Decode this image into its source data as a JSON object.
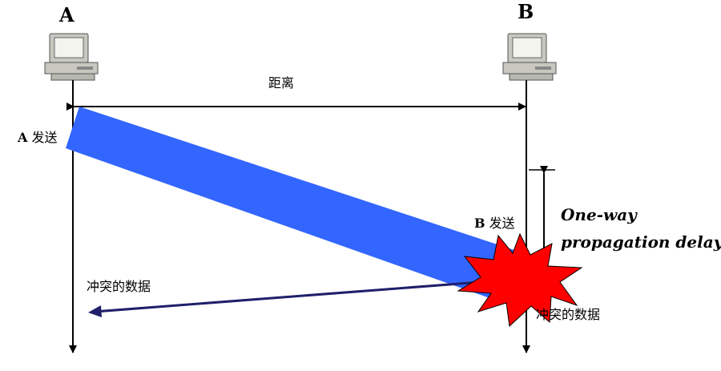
{
  "nodes": {
    "a": {
      "label": "A",
      "send_label": "发送"
    },
    "b": {
      "label": "B",
      "send_label": "发送"
    }
  },
  "distance_label": "距离",
  "delay_label": {
    "line1": "One-way",
    "line2": "propagation delay"
  },
  "collision_label_left": "冲突的数据",
  "collision_label_right": "冲突的数据",
  "colors": {
    "signal_band": "#3366ff",
    "burst": "#ff0000",
    "collision_arrow": "#1f1f6b",
    "line": "#000000"
  },
  "icons": [
    "computer-icon",
    "collision-burst-icon"
  ]
}
